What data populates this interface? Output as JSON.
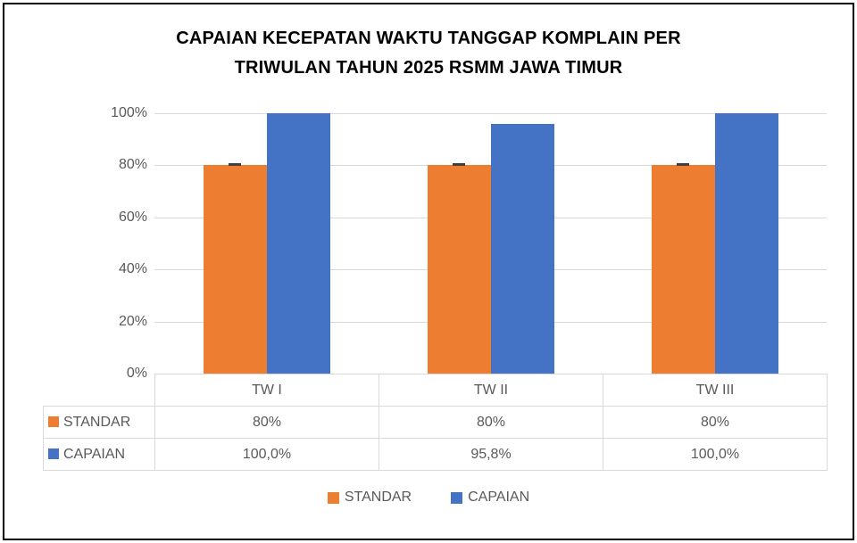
{
  "title": "CAPAIAN KECEPATAN WAKTU TANGGAP KOMPLAIN PER\nTRIWULAN TAHUN 2025 RSMM JAWA TIMUR",
  "colors": {
    "standar": "#ED7D31",
    "capaian": "#4472C4",
    "gridline": "#D9D9D9",
    "axis_text": "#595959",
    "marker": "#404040",
    "table_border": "#D9D9D9",
    "title_text": "#000000"
  },
  "chart_data": {
    "type": "bar",
    "title": "CAPAIAN KECEPATAN WAKTU TANGGAP KOMPLAIN PER TRIWULAN TAHUN 2025 RSMM JAWA TIMUR",
    "categories": [
      "TW I",
      "TW II",
      "TW III"
    ],
    "series": [
      {
        "name": "STANDAR",
        "color": "#ED7D31",
        "values": [
          80,
          80,
          80
        ],
        "labels": [
          "80%",
          "80%",
          "80%"
        ]
      },
      {
        "name": "CAPAIAN",
        "color": "#4472C4",
        "values": [
          100,
          95.8,
          100
        ],
        "labels": [
          "100,0%",
          "95,8%",
          "100,0%"
        ]
      }
    ],
    "xlabel": "",
    "ylabel": "",
    "ylim": [
      0,
      100
    ],
    "y_tick_labels": [
      "0%",
      "20%",
      "40%",
      "60%",
      "80%",
      "100%"
    ],
    "grid": true,
    "legend_position": "bottom",
    "has_data_table": true
  },
  "legend": {
    "items": [
      {
        "label": "STANDAR",
        "color": "#ED7D31"
      },
      {
        "label": "CAPAIAN",
        "color": "#4472C4"
      }
    ]
  }
}
